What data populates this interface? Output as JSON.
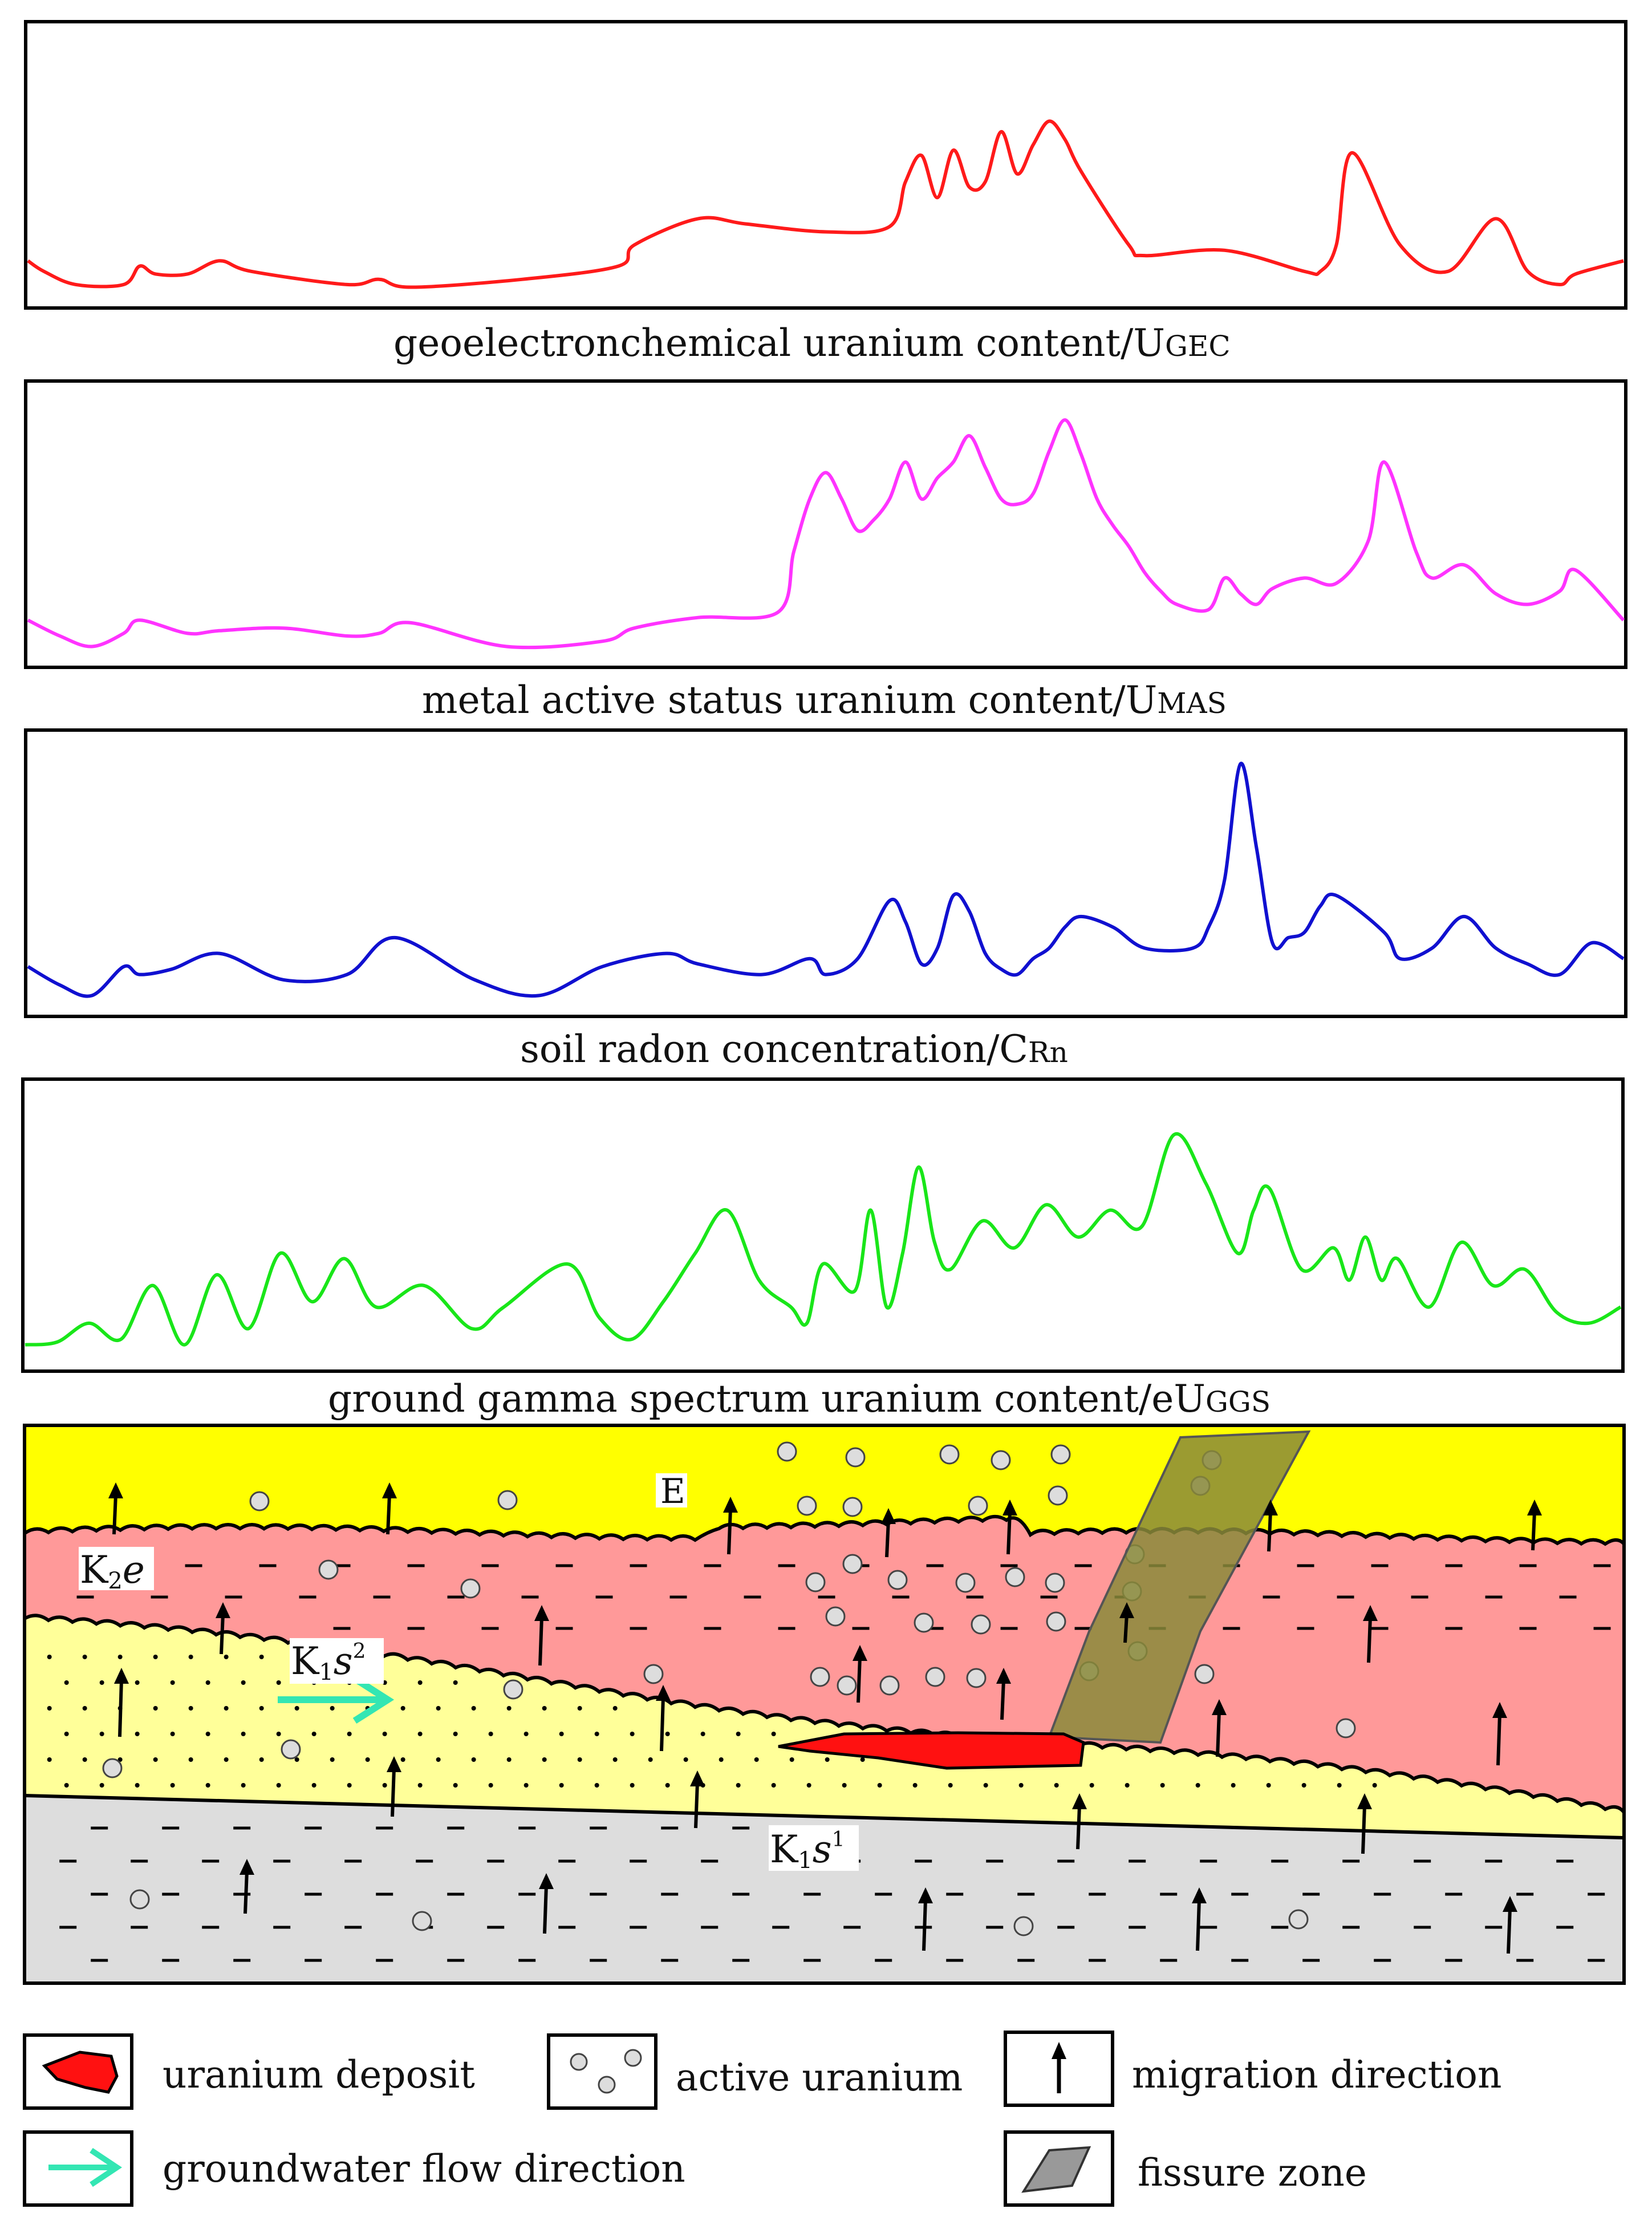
{
  "colors": {
    "gec": "#ff1a1a",
    "mas": "#ff33ff",
    "rn": "#1010d0",
    "ggs": "#19e619",
    "layer_E": "#ffff00",
    "layer_K2e": "#ff9999",
    "layer_K1s2": "#ffff99",
    "layer_K1s1": "#dddddd",
    "deposit": "#ff1111",
    "fissure": "#8a8a3a",
    "groundwater": "#33e6b3"
  },
  "panels": [
    {
      "id": "gec",
      "caption_main": "geoelectronchemical  uranium content/U",
      "caption_sub": "GEC"
    },
    {
      "id": "mas",
      "caption_main": "metal active status  uranium content/U",
      "caption_sub": "MAS"
    },
    {
      "id": "rn",
      "caption_main": "soil radon concentration/C",
      "caption_sub": "Rn"
    },
    {
      "id": "ggs",
      "caption_main": "ground gamma spectrum  uranium content/eU",
      "caption_sub": "GGS"
    }
  ],
  "chart_data": [
    {
      "type": "line",
      "title": "geoelectronchemical uranium content/UGEC",
      "series": [
        {
          "name": "UGEC",
          "x": [
            0,
            1,
            3,
            6,
            7,
            8,
            10,
            12,
            14,
            20,
            22,
            24,
            31,
            37,
            38,
            42,
            45,
            50,
            54,
            55,
            56,
            57,
            58,
            59,
            60,
            61,
            62,
            63,
            64,
            65,
            66,
            69,
            70,
            75,
            80,
            81,
            82,
            83,
            86,
            89,
            92,
            94,
            96,
            97,
            100
          ],
          "values": [
            14,
            10,
            5,
            5,
            12,
            9,
            9,
            14,
            10,
            5,
            7,
            4,
            7,
            12,
            20,
            30,
            28,
            25,
            27,
            44,
            54,
            38,
            56,
            42,
            44,
            63,
            47,
            58,
            67,
            60,
            48,
            20,
            16,
            18,
            10,
            10,
            20,
            55,
            20,
            10,
            30,
            10,
            5,
            9,
            14
          ]
        }
      ],
      "ylim": [
        0,
        100
      ]
    },
    {
      "type": "line",
      "title": "metal active status uranium content/UMAS",
      "series": [
        {
          "name": "UMAS",
          "x": [
            0,
            2,
            4,
            6,
            7,
            10,
            12,
            16,
            20,
            22,
            24,
            30,
            36,
            38,
            42,
            47,
            48,
            49,
            50,
            51,
            52,
            53,
            54,
            55,
            56,
            57,
            58,
            59,
            60,
            61,
            62,
            63,
            64,
            65,
            66,
            67,
            68,
            69,
            70,
            71,
            72,
            74,
            75,
            76,
            77,
            78,
            80,
            82,
            84,
            85,
            87,
            88,
            90,
            92,
            94,
            96,
            97,
            100
          ],
          "values": [
            14,
            8,
            4,
            9,
            14,
            9,
            10,
            11,
            8,
            9,
            13,
            4,
            6,
            11,
            15,
            17,
            40,
            60,
            70,
            60,
            48,
            52,
            60,
            74,
            60,
            68,
            74,
            84,
            72,
            60,
            58,
            62,
            78,
            90,
            77,
            60,
            50,
            42,
            32,
            25,
            20,
            18,
            30,
            24,
            20,
            26,
            30,
            28,
            44,
            74,
            40,
            30,
            35,
            24,
            20,
            25,
            33,
            14
          ]
        }
      ],
      "ylim": [
        0,
        100
      ]
    },
    {
      "type": "line",
      "title": "soil radon concentration/CRn",
      "series": [
        {
          "name": "CRn",
          "x": [
            0,
            2,
            4,
            6,
            7,
            9,
            12,
            16,
            20,
            23,
            28,
            32,
            36,
            40,
            42,
            46,
            49,
            50,
            52,
            54,
            55,
            56,
            57,
            58,
            59,
            60,
            61,
            62,
            63,
            64,
            65,
            66,
            68,
            70,
            73,
            74,
            75,
            76,
            77,
            78,
            79,
            80,
            81,
            82,
            85,
            86,
            88,
            90,
            92,
            94,
            96,
            98,
            100
          ],
          "values": [
            15,
            8,
            4,
            15,
            12,
            14,
            20,
            10,
            12,
            26,
            10,
            4,
            15,
            20,
            16,
            12,
            18,
            12,
            18,
            40,
            32,
            16,
            22,
            42,
            36,
            20,
            14,
            12,
            18,
            22,
            30,
            34,
            30,
            22,
            22,
            30,
            48,
            92,
            60,
            24,
            26,
            28,
            38,
            42,
            28,
            18,
            22,
            34,
            22,
            16,
            12,
            24,
            18
          ]
        }
      ],
      "ylim": [
        0,
        100
      ]
    },
    {
      "type": "line",
      "title": "ground gamma spectrum uranium content/eUGGS",
      "series": [
        {
          "name": "eUGGS",
          "x": [
            0,
            2,
            4,
            6,
            8,
            10,
            12,
            14,
            16,
            18,
            20,
            22,
            25,
            28,
            30,
            34,
            36,
            38,
            40,
            42,
            44,
            46,
            48,
            49,
            50,
            52,
            53,
            54,
            55,
            56,
            57,
            58,
            60,
            62,
            64,
            66,
            68,
            70,
            72,
            74,
            76,
            77,
            78,
            80,
            82,
            83,
            84,
            85,
            86,
            88,
            90,
            92,
            94,
            96,
            98,
            100
          ],
          "values": [
            6,
            7,
            14,
            8,
            28,
            6,
            32,
            12,
            40,
            22,
            38,
            20,
            28,
            12,
            20,
            36,
            16,
            8,
            22,
            40,
            56,
            30,
            20,
            14,
            36,
            26,
            56,
            20,
            40,
            72,
            44,
            34,
            52,
            42,
            58,
            46,
            56,
            50,
            84,
            66,
            40,
            56,
            64,
            34,
            42,
            30,
            46,
            30,
            38,
            20,
            44,
            28,
            34,
            18,
            14,
            20
          ]
        }
      ],
      "ylim": [
        0,
        100
      ]
    }
  ],
  "section": {
    "labels": {
      "E": "E",
      "K2e_main": "K",
      "K2e_sub": "2",
      "K2e_ital": "e",
      "K1s2_main": "K",
      "K1s2_sub": "1",
      "K1s2_ital": "s",
      "K1s2_sup": "2",
      "K1s1_main": "K",
      "K1s1_sub": "1",
      "K1s1_ital": "s",
      "K1s1_sup": "1"
    }
  },
  "legend": {
    "uranium_deposit": "uranium deposit",
    "active_uranium": "active uranium",
    "migration_direction": "migration direction",
    "groundwater_flow": "groundwater flow direction",
    "fissure_zone": "fissure zone"
  }
}
